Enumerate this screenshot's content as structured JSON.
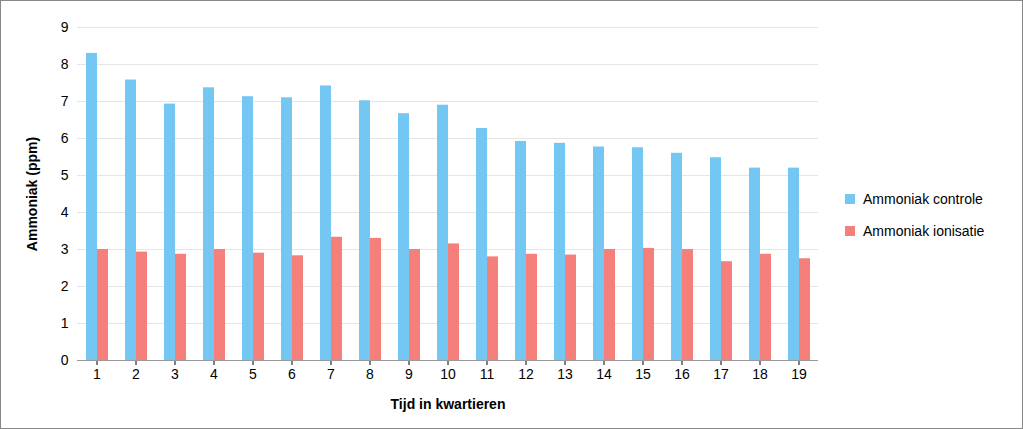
{
  "chart_data": {
    "type": "bar",
    "xlabel": "Tijd in kwartieren",
    "ylabel": "Ammoniak (ppm)",
    "categories": [
      1,
      2,
      3,
      4,
      5,
      6,
      7,
      8,
      9,
      10,
      11,
      12,
      13,
      14,
      15,
      16,
      17,
      18,
      19
    ],
    "series": [
      {
        "name": "Ammoniak controle",
        "color": "#74c7f2",
        "values": [
          8.3,
          7.58,
          6.93,
          7.37,
          7.13,
          7.1,
          7.42,
          7.02,
          6.67,
          6.9,
          6.27,
          5.92,
          5.87,
          5.77,
          5.75,
          5.6,
          5.48,
          5.2,
          5.2
        ]
      },
      {
        "name": "Ammoniak ionisatie",
        "color": "#f47f7b",
        "values": [
          3.0,
          2.93,
          2.87,
          3.0,
          2.9,
          2.83,
          3.33,
          3.3,
          3.0,
          3.15,
          2.8,
          2.87,
          2.85,
          3.0,
          3.03,
          3.0,
          2.67,
          2.87,
          2.75
        ]
      }
    ],
    "ylim": [
      0,
      9
    ],
    "yticks": [
      0,
      1,
      2,
      3,
      4,
      5,
      6,
      7,
      8,
      9
    ],
    "grid": true,
    "legend": "right"
  }
}
